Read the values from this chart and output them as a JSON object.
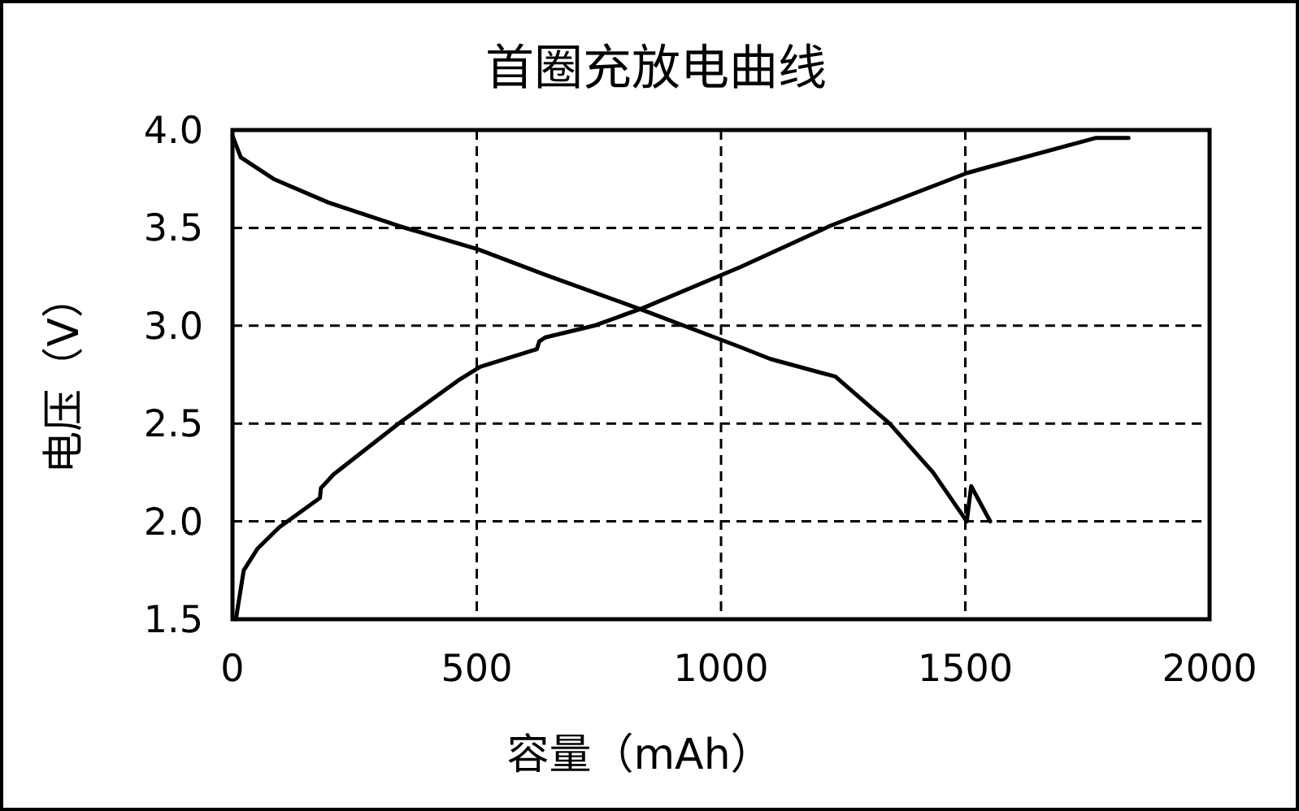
{
  "chart_data": {
    "type": "line",
    "title": "首圈充放电曲线",
    "xlabel": "容量（mAh）",
    "ylabel": "电压（V）",
    "xlim": [
      0,
      2000
    ],
    "xticks": [
      0,
      500,
      1000,
      1500,
      2000
    ],
    "ylim": [
      1.5,
      4.0
    ],
    "yticks": [
      {
        "value": 1.5,
        "label": "1.5"
      },
      {
        "value": 2.0,
        "label": "2.0"
      },
      {
        "value": 2.5,
        "label": "2.5"
      },
      {
        "value": 3.0,
        "label": "3.0"
      },
      {
        "value": 3.5,
        "label": "3.5"
      },
      {
        "value": 4.0,
        "label": "4.0"
      }
    ],
    "grid": true,
    "marker": "none",
    "line_style": "solid",
    "series": [
      {
        "color": "#000000",
        "x": [
          0,
          17,
          84,
          196,
          340,
          503,
          640,
          840,
          1040,
          1101,
          1234,
          1345,
          1434,
          1503,
          1512,
          1551
        ],
        "values": [
          3.97,
          3.86,
          3.75,
          3.63,
          3.51,
          3.39,
          3.26,
          3.08,
          2.89,
          2.83,
          2.74,
          2.5,
          2.25,
          2.0,
          2.18,
          2.0
        ]
      },
      {
        "color": "#000000",
        "x": [
          7,
          23,
          51,
          96,
          179,
          181,
          207,
          340,
          462,
          507,
          623,
          628,
          640,
          740,
          840,
          1040,
          1223,
          1503,
          1546,
          1768,
          1834
        ],
        "values": [
          1.5,
          1.75,
          1.86,
          1.97,
          2.12,
          2.17,
          2.24,
          2.5,
          2.72,
          2.79,
          2.88,
          2.92,
          2.94,
          3.0,
          3.09,
          3.3,
          3.51,
          3.78,
          3.81,
          3.96,
          3.96
        ]
      }
    ]
  }
}
